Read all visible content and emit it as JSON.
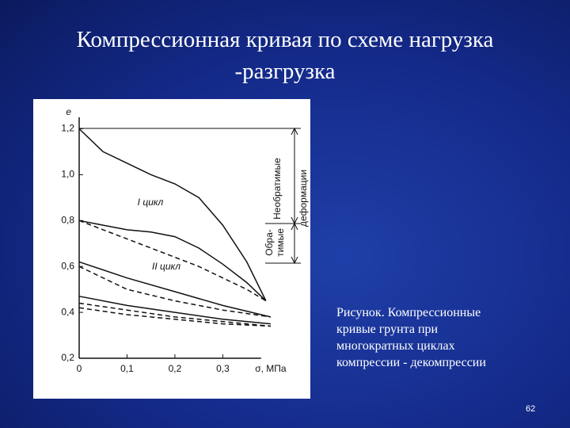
{
  "title": [
    "Компрессионная кривая по схеме нагрузка",
    "-разгрузка"
  ],
  "caption": [
    "Рисунок. Компрессионные",
    "кривые грунта при",
    "многократных циклах",
    "компрессии - декомпрессии"
  ],
  "page_number": "62",
  "chart_data": {
    "type": "line",
    "y_label": "e",
    "x_label": "σ, МПа",
    "xlim": [
      0,
      0.42
    ],
    "ylim": [
      0.2,
      1.25
    ],
    "xticks": [
      0,
      {
        "value": 0.1,
        "label": "0,1"
      },
      {
        "value": 0.2,
        "label": "0,2"
      },
      {
        "value": 0.3,
        "label": "0,3"
      }
    ],
    "yticks": [
      {
        "value": 0.2,
        "label": "0,2"
      },
      {
        "value": 0.4,
        "label": "0,4"
      },
      {
        "value": 0.6,
        "label": "0,6"
      },
      {
        "value": 0.8,
        "label": "0,8"
      },
      {
        "value": 1.0,
        "label": "1,0"
      },
      {
        "value": 1.2,
        "label": "1,2"
      }
    ],
    "annotations": [
      "I цикл",
      "II цикл",
      "Необратимые",
      "деформации",
      "Обра-",
      "тимые"
    ],
    "series": [
      {
        "color": "#111",
        "style": "solid",
        "x": [
          0,
          0.05,
          0.1,
          0.15,
          0.2,
          0.25,
          0.3,
          0.35,
          0.39
        ],
        "values": [
          1.2,
          1.1,
          1.05,
          1.0,
          0.96,
          0.9,
          0.78,
          0.62,
          0.45
        ]
      },
      {
        "color": "#111",
        "style": "dashed",
        "x": [
          0,
          0.05,
          0.1,
          0.15,
          0.2,
          0.25,
          0.3,
          0.35,
          0.39
        ],
        "values": [
          0.8,
          0.76,
          0.72,
          0.68,
          0.64,
          0.6,
          0.55,
          0.5,
          0.45
        ]
      },
      {
        "color": "#111",
        "style": "solid",
        "x": [
          0,
          0.05,
          0.1,
          0.15,
          0.2,
          0.25,
          0.3,
          0.35,
          0.39
        ],
        "values": [
          0.8,
          0.78,
          0.76,
          0.75,
          0.73,
          0.68,
          0.61,
          0.53,
          0.45
        ]
      },
      {
        "color": "#111",
        "style": "solid",
        "x": [
          0,
          0.1,
          0.2,
          0.3,
          0.4
        ],
        "values": [
          0.62,
          0.55,
          0.49,
          0.43,
          0.38
        ]
      },
      {
        "color": "#111",
        "style": "dashed",
        "x": [
          0,
          0.1,
          0.2,
          0.3,
          0.4
        ],
        "values": [
          0.6,
          0.5,
          0.45,
          0.41,
          0.38
        ]
      },
      {
        "color": "#111",
        "style": "solid",
        "x": [
          0,
          0.1,
          0.2,
          0.3,
          0.4
        ],
        "values": [
          0.47,
          0.43,
          0.4,
          0.37,
          0.35
        ]
      },
      {
        "color": "#111",
        "style": "dashed",
        "x": [
          0,
          0.1,
          0.2,
          0.3,
          0.4
        ],
        "values": [
          0.44,
          0.41,
          0.38,
          0.36,
          0.34
        ]
      },
      {
        "color": "#111",
        "style": "dashed",
        "x": [
          0,
          0.1,
          0.2,
          0.3,
          0.4
        ],
        "values": [
          0.42,
          0.39,
          0.37,
          0.35,
          0.34
        ]
      }
    ]
  }
}
